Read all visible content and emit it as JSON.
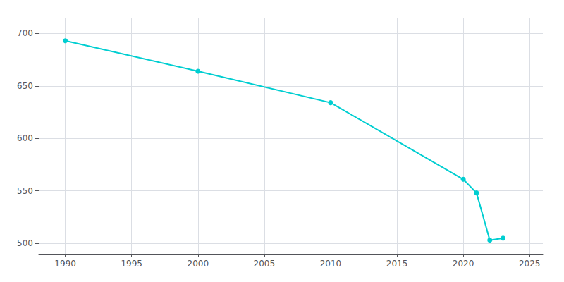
{
  "chart_data": {
    "type": "line",
    "x": [
      1990,
      2000,
      2010,
      2020,
      2021,
      2022,
      2023
    ],
    "values": [
      693,
      664,
      634,
      561,
      548,
      503,
      505
    ],
    "color": "#00CED1",
    "marker": "circle",
    "xlim": [
      1988,
      2026
    ],
    "ylim": [
      490,
      715
    ],
    "xticks": [
      1990,
      1995,
      2000,
      2005,
      2010,
      2015,
      2020,
      2025
    ],
    "yticks": [
      500,
      550,
      600,
      650,
      700
    ],
    "grid": true
  }
}
